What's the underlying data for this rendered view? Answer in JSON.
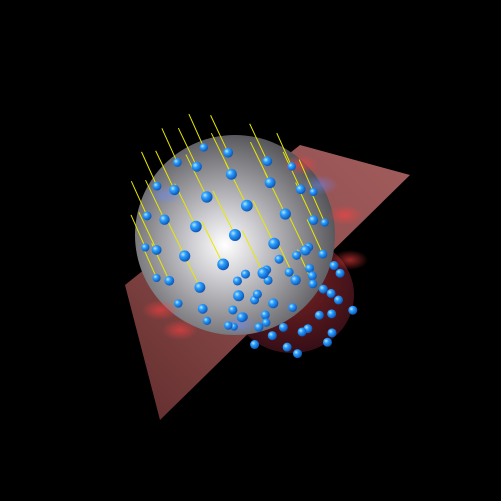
{
  "scene": {
    "background": "#000000",
    "sphere_color": "#b8b8b8",
    "plane_color": "#8a4848",
    "marker_color": "#1a8fff",
    "arrow_color": "#e8e800",
    "description_icon": "sphere-with-points-and-plane"
  }
}
